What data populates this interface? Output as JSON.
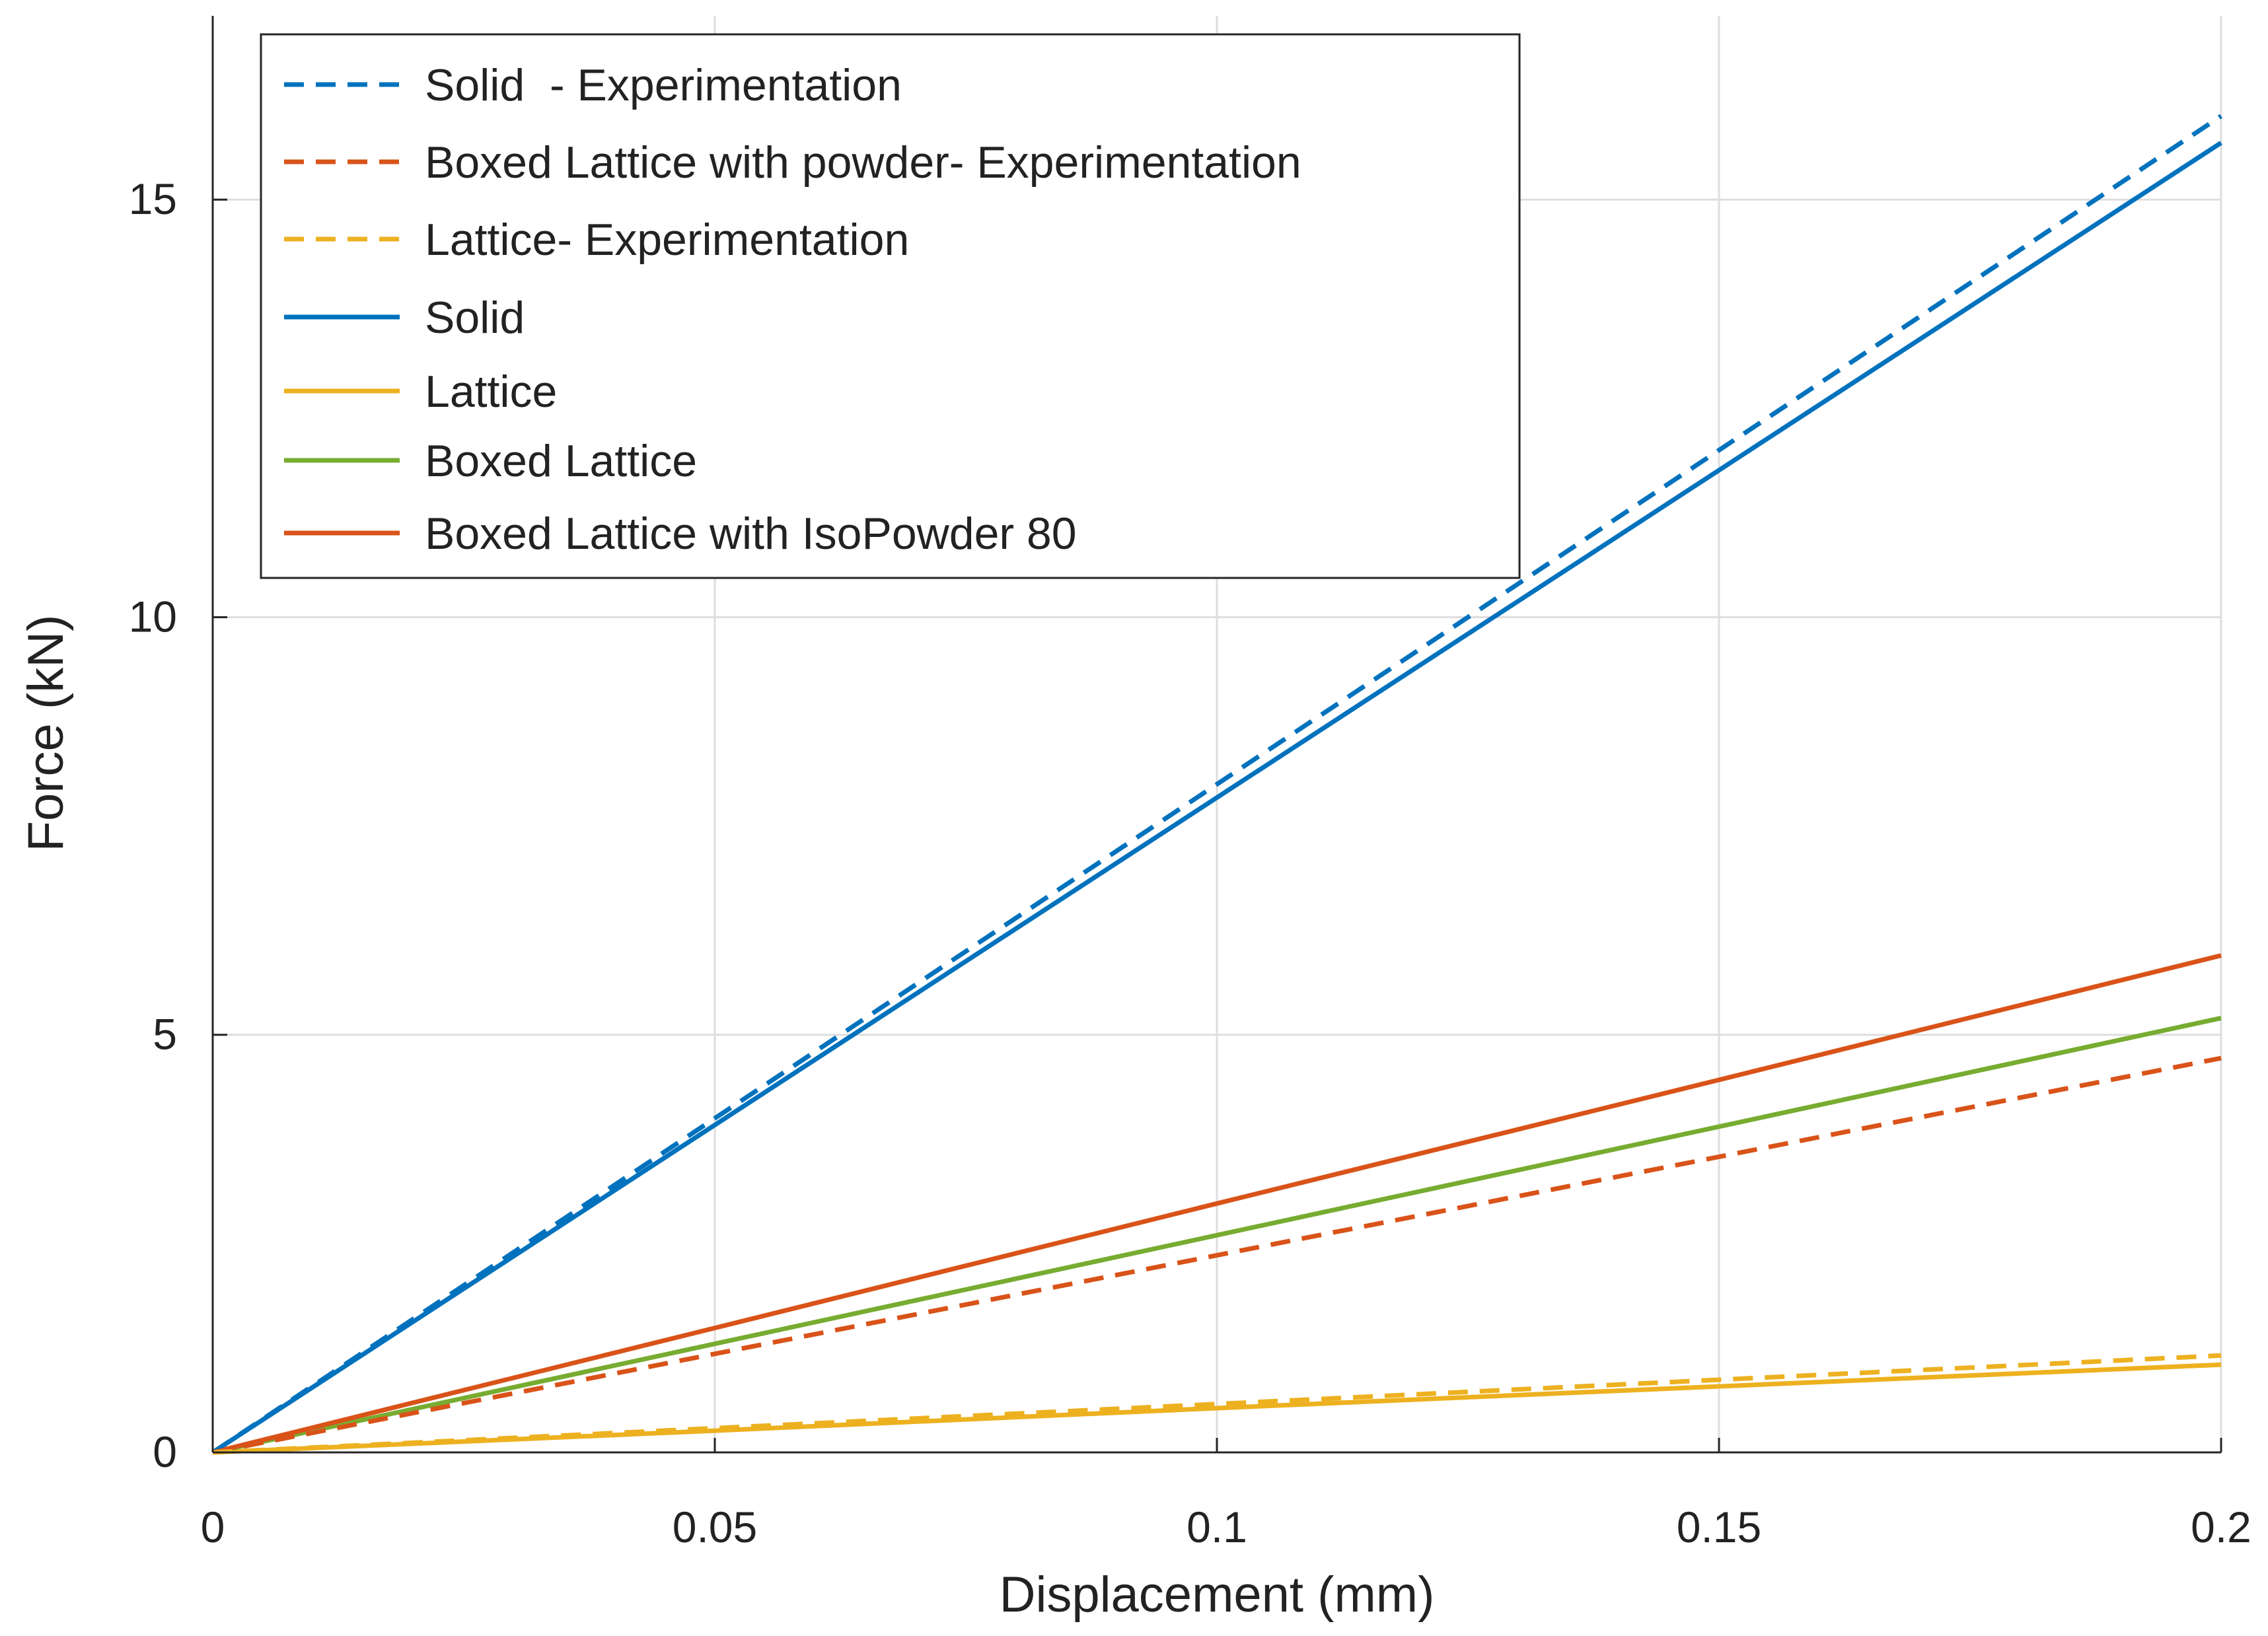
{
  "chart_data": {
    "type": "line",
    "title": "",
    "xlabel": "Displacement (mm)",
    "ylabel": "Force (kN)",
    "xlim": [
      0,
      0.2
    ],
    "ylim": [
      0,
      17.2
    ],
    "grid": true,
    "legend_position": "top-left",
    "x_ticks": [
      0,
      0.05,
      0.1,
      0.15,
      0.2
    ],
    "x_tick_labels": [
      "0",
      "0.05",
      "0.1",
      "0.15",
      "0.2"
    ],
    "y_ticks": [
      0,
      5,
      10,
      15
    ],
    "y_tick_labels": [
      "0",
      "5",
      "10",
      "15"
    ],
    "series": [
      {
        "name": "Solid  - Experimentation",
        "color": "#0072BD",
        "style": "dashed",
        "x": [
          0,
          0.05,
          0.1,
          0.15,
          0.2
        ],
        "y": [
          0,
          4.0,
          8.0,
          12.0,
          16.0
        ]
      },
      {
        "name": "Boxed Lattice with powder- Experimentation",
        "color": "#D95319",
        "style": "dashed",
        "x": [
          0,
          0.05,
          0.1,
          0.15,
          0.2
        ],
        "y": [
          0,
          1.18,
          2.36,
          3.54,
          4.72
        ]
      },
      {
        "name": "Lattice- Experimentation",
        "color": "#EDB120",
        "style": "dashed",
        "x": [
          0,
          0.05,
          0.1,
          0.15,
          0.2
        ],
        "y": [
          0,
          0.29,
          0.58,
          0.87,
          1.16
        ]
      },
      {
        "name": "Solid",
        "color": "#0072BD",
        "style": "solid",
        "x": [
          0,
          0.05,
          0.1,
          0.15,
          0.2
        ],
        "y": [
          0,
          3.92,
          7.84,
          11.76,
          15.68
        ]
      },
      {
        "name": "Lattice",
        "color": "#EDB120",
        "style": "solid",
        "x": [
          0,
          0.05,
          0.1,
          0.15,
          0.2
        ],
        "y": [
          0,
          0.26,
          0.53,
          0.79,
          1.05
        ]
      },
      {
        "name": "Boxed Lattice",
        "color": "#77AC30",
        "style": "solid",
        "x": [
          0,
          0.05,
          0.1,
          0.15,
          0.2
        ],
        "y": [
          0,
          1.3,
          2.6,
          3.9,
          5.2
        ]
      },
      {
        "name": "Boxed Lattice with IsoPowder 80",
        "color": "#D95319",
        "style": "solid",
        "x": [
          0,
          0.05,
          0.1,
          0.15,
          0.2
        ],
        "y": [
          0,
          1.49,
          2.98,
          4.46,
          5.95
        ]
      }
    ]
  }
}
